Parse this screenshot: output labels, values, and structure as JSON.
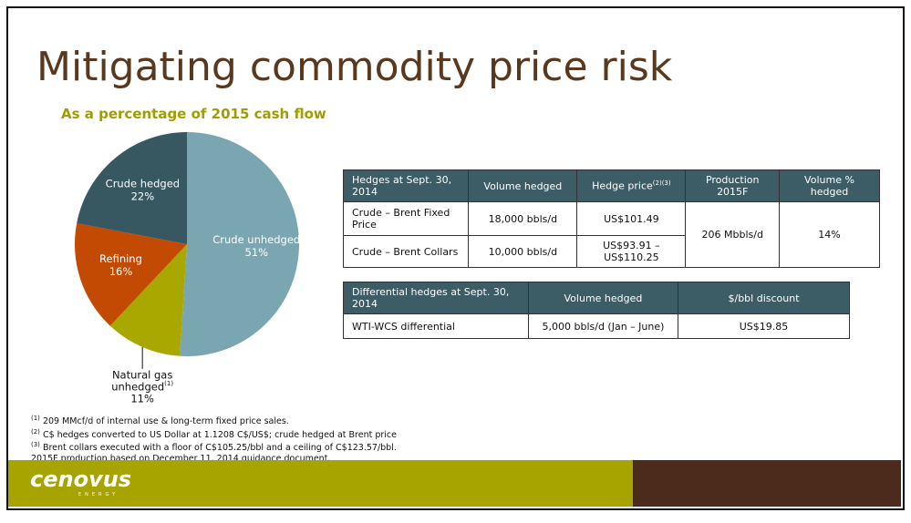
{
  "title": "Mitigating commodity price risk",
  "chart_data": {
    "type": "pie",
    "title": "As a percentage of 2015 cash flow",
    "categories": [
      "Crude unhedged",
      "Natural gas unhedged",
      "Refining",
      "Crude hedged"
    ],
    "category_notes": {
      "1": "(1)"
    },
    "values": [
      51,
      11,
      16,
      22
    ],
    "value_labels": [
      "51%",
      "11%",
      "16%",
      "22%"
    ],
    "colors": [
      "#7aa6b2",
      "#a8a800",
      "#c34a02",
      "#375761"
    ]
  },
  "hedge_table": {
    "header": [
      "Hedges at Sept. 30, 2014",
      "Volume hedged",
      "Hedge price",
      "Production 2015F",
      "Volume % hedged"
    ],
    "header_notes": {
      "2": "(2)(3)"
    },
    "rows": [
      [
        "Crude – Brent Fixed Price",
        "18,000 bbls/d",
        "US$101.49",
        "206 Mbbls/d",
        "14%"
      ],
      [
        "Crude – Brent Collars",
        "10,000 bbls/d",
        "US$93.91 – US$110.25"
      ]
    ]
  },
  "differential_table": {
    "header": [
      "Differential hedges at Sept. 30, 2014",
      "Volume hedged",
      "$/bbl discount"
    ],
    "rows": [
      [
        "WTI-WCS differential",
        "5,000 bbls/d (Jan – June)",
        "US$19.85"
      ]
    ]
  },
  "footnotes": [
    {
      "marker": "(1)",
      "text": " 209 MMcf/d of internal use & long-term fixed price sales."
    },
    {
      "marker": "(2)",
      "text": " C$ hedges converted to US Dollar at 1.1208 C$/US$; crude hedged at Brent price"
    },
    {
      "marker": "(3)",
      "text": " Brent collars executed with a floor of C$105.25/bbl and a ceiling of C$123.57/bbl."
    },
    {
      "text": "2015F production based on December 11, 2014 guidance document."
    }
  ],
  "logo": {
    "name": "cenovus",
    "tagline": "ENERGY"
  }
}
